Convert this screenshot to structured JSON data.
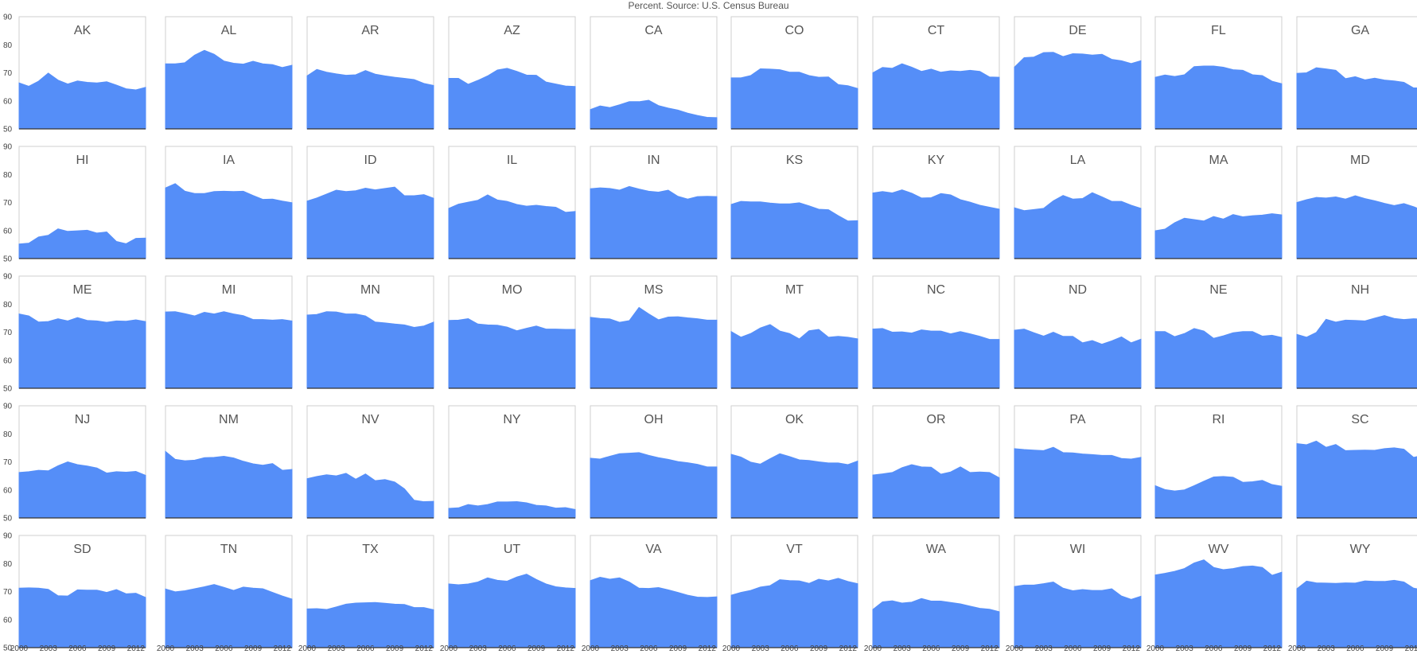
{
  "chart_title": "Percent. Source: U.S. Census Bureau",
  "colors": {
    "area": "#558ef8",
    "frame": "#cfcfcf",
    "baseline": "#333333",
    "label": "#555555",
    "tick": "#444444"
  },
  "chart_data": {
    "type": "area",
    "title": "Percent. Source: U.S. Census Bureau",
    "x": [
      2000,
      2001,
      2002,
      2003,
      2004,
      2005,
      2006,
      2007,
      2008,
      2009,
      2010,
      2011,
      2012,
      2013
    ],
    "xticks": [
      2000,
      2003,
      2006,
      2009,
      2012
    ],
    "ylim": [
      50,
      90
    ],
    "yticks": [
      50,
      60,
      70,
      80,
      90
    ],
    "grid": false,
    "panels": [
      {
        "name": "AK",
        "values": [
          66.4,
          65.2,
          67.0,
          69.9,
          67.4,
          66.0,
          67.1,
          66.6,
          66.4,
          66.8,
          65.6,
          64.3,
          63.9,
          64.8
        ]
      },
      {
        "name": "AL",
        "values": [
          73.2,
          73.2,
          73.6,
          76.3,
          78.0,
          76.6,
          74.2,
          73.4,
          73.1,
          74.1,
          73.2,
          72.9,
          71.9,
          72.7
        ]
      },
      {
        "name": "AR",
        "values": [
          68.9,
          71.2,
          70.2,
          69.6,
          69.1,
          69.3,
          70.8,
          69.5,
          68.9,
          68.4,
          68.0,
          67.6,
          66.2,
          65.5
        ]
      },
      {
        "name": "AZ",
        "values": [
          68.0,
          68.0,
          65.9,
          67.3,
          68.9,
          71.0,
          71.6,
          70.5,
          69.2,
          69.1,
          66.7,
          66.0,
          65.3,
          65.1
        ]
      },
      {
        "name": "CA",
        "values": [
          56.9,
          58.2,
          57.6,
          58.6,
          59.7,
          59.7,
          60.2,
          58.3,
          57.4,
          56.7,
          55.6,
          54.8,
          54.1,
          54.0
        ]
      },
      {
        "name": "CO",
        "values": [
          68.2,
          68.2,
          69.0,
          71.4,
          71.3,
          71.1,
          70.2,
          70.2,
          69.0,
          68.4,
          68.5,
          65.8,
          65.4,
          64.4
        ]
      },
      {
        "name": "CT",
        "values": [
          70.0,
          71.9,
          71.6,
          73.2,
          72.0,
          70.5,
          71.3,
          70.2,
          70.7,
          70.5,
          70.9,
          70.5,
          68.5,
          68.4
        ]
      },
      {
        "name": "DE",
        "values": [
          72.0,
          75.4,
          75.6,
          77.2,
          77.3,
          75.8,
          76.8,
          76.7,
          76.3,
          76.6,
          74.8,
          74.3,
          73.3,
          74.3
        ]
      },
      {
        "name": "FL",
        "values": [
          68.4,
          69.2,
          68.7,
          69.3,
          72.2,
          72.4,
          72.4,
          72.0,
          71.1,
          70.9,
          69.3,
          69.0,
          67.0,
          66.1
        ]
      },
      {
        "name": "GA",
        "values": [
          69.8,
          70.0,
          71.8,
          71.4,
          70.9,
          67.9,
          68.6,
          67.5,
          68.1,
          67.4,
          67.1,
          66.6,
          64.6,
          64.6
        ]
      },
      {
        "name": "HI",
        "values": [
          55.2,
          55.5,
          57.7,
          58.3,
          60.6,
          59.7,
          59.9,
          60.1,
          59.1,
          59.5,
          56.1,
          55.3,
          57.2,
          57.3
        ]
      },
      {
        "name": "IA",
        "values": [
          75.2,
          76.7,
          74.0,
          73.2,
          73.2,
          73.9,
          74.0,
          73.9,
          74.0,
          72.5,
          71.1,
          71.2,
          70.5,
          69.9
        ]
      },
      {
        "name": "ID",
        "values": [
          70.5,
          71.6,
          73.0,
          74.4,
          73.9,
          74.2,
          75.1,
          74.5,
          75.0,
          75.5,
          72.4,
          72.4,
          72.8,
          71.5
        ]
      },
      {
        "name": "IL",
        "values": [
          67.9,
          69.4,
          70.1,
          70.8,
          72.7,
          70.9,
          70.4,
          69.3,
          68.7,
          69.0,
          68.6,
          68.3,
          66.5,
          66.8
        ]
      },
      {
        "name": "IN",
        "values": [
          74.9,
          75.2,
          75.0,
          74.4,
          75.7,
          74.8,
          74.0,
          73.7,
          74.4,
          72.2,
          71.2,
          72.1,
          72.2,
          72.1
        ]
      },
      {
        "name": "KS",
        "values": [
          69.3,
          70.4,
          70.2,
          70.2,
          69.8,
          69.5,
          69.5,
          69.9,
          68.8,
          67.6,
          67.4,
          65.3,
          63.4,
          63.5
        ]
      },
      {
        "name": "KY",
        "values": [
          73.4,
          73.9,
          73.4,
          74.5,
          73.3,
          71.6,
          71.7,
          73.2,
          72.7,
          71.0,
          70.1,
          69.0,
          68.3,
          67.6
        ]
      },
      {
        "name": "LA",
        "values": [
          68.1,
          67.1,
          67.5,
          67.9,
          70.6,
          72.5,
          71.2,
          71.4,
          73.5,
          72.0,
          70.4,
          70.4,
          69.0,
          67.9
        ]
      },
      {
        "name": "MA",
        "values": [
          59.9,
          60.5,
          62.8,
          64.4,
          63.9,
          63.4,
          65.0,
          64.1,
          65.7,
          64.9,
          65.3,
          65.5,
          66.0,
          65.6
        ]
      },
      {
        "name": "MD",
        "values": [
          70.0,
          71.0,
          71.8,
          71.6,
          72.0,
          71.2,
          72.4,
          71.4,
          70.6,
          69.7,
          68.9,
          69.6,
          68.5,
          67.1
        ]
      },
      {
        "name": "ME",
        "values": [
          76.5,
          75.8,
          73.6,
          73.8,
          74.8,
          74.0,
          75.2,
          74.2,
          74.0,
          73.5,
          74.0,
          73.9,
          74.4,
          73.8
        ]
      },
      {
        "name": "MI",
        "values": [
          77.2,
          77.3,
          76.6,
          75.8,
          77.1,
          76.5,
          77.3,
          76.5,
          75.9,
          74.5,
          74.5,
          74.3,
          74.5,
          74.0
        ]
      },
      {
        "name": "MN",
        "values": [
          76.1,
          76.3,
          77.3,
          77.2,
          76.5,
          76.5,
          75.8,
          73.6,
          73.3,
          72.9,
          72.6,
          71.7,
          72.2,
          73.6
        ]
      },
      {
        "name": "MO",
        "values": [
          74.2,
          74.3,
          74.8,
          72.9,
          72.6,
          72.5,
          71.8,
          70.5,
          71.4,
          72.2,
          71.1,
          71.1,
          71.0,
          71.0
        ]
      },
      {
        "name": "MS",
        "values": [
          75.3,
          74.9,
          74.7,
          73.5,
          74.1,
          78.8,
          76.5,
          74.4,
          75.4,
          75.5,
          75.1,
          74.8,
          74.3,
          74.3
        ]
      },
      {
        "name": "MT",
        "values": [
          70.2,
          68.2,
          69.5,
          71.5,
          72.7,
          70.4,
          69.5,
          67.6,
          70.5,
          71.0,
          68.2,
          68.5,
          68.2,
          67.6
        ]
      },
      {
        "name": "NC",
        "values": [
          71.1,
          71.3,
          70.0,
          70.1,
          69.7,
          70.8,
          70.4,
          70.4,
          69.4,
          70.2,
          69.4,
          68.5,
          67.4,
          67.4
        ]
      },
      {
        "name": "ND",
        "values": [
          70.7,
          71.1,
          69.8,
          68.6,
          70.0,
          68.5,
          68.5,
          66.2,
          67.0,
          65.7,
          66.9,
          68.3,
          66.2,
          67.5
        ]
      },
      {
        "name": "NE",
        "values": [
          70.2,
          70.2,
          68.4,
          69.5,
          71.3,
          70.4,
          67.8,
          68.7,
          69.8,
          70.2,
          70.2,
          68.6,
          68.9,
          68.1
        ]
      },
      {
        "name": "NH",
        "values": [
          69.2,
          68.2,
          69.9,
          74.6,
          73.6,
          74.3,
          74.2,
          74.0,
          75.0,
          75.9,
          74.9,
          74.5,
          74.8,
          74.6
        ]
      },
      {
        "name": "NJ",
        "values": [
          66.2,
          66.5,
          67.0,
          66.8,
          68.6,
          70.0,
          69.0,
          68.5,
          67.8,
          66.0,
          66.5,
          66.3,
          66.6,
          65.2
        ]
      },
      {
        "name": "NM",
        "values": [
          73.7,
          70.9,
          70.4,
          70.6,
          71.5,
          71.6,
          72.0,
          71.4,
          70.2,
          69.3,
          68.8,
          69.4,
          67.0,
          67.3
        ]
      },
      {
        "name": "NV",
        "values": [
          64.0,
          64.8,
          65.4,
          65.0,
          65.9,
          63.8,
          65.7,
          63.3,
          63.7,
          62.8,
          60.4,
          56.3,
          55.8,
          55.9
        ]
      },
      {
        "name": "NY",
        "values": [
          53.4,
          53.6,
          54.8,
          54.3,
          54.8,
          55.7,
          55.7,
          55.8,
          55.4,
          54.5,
          54.3,
          53.5,
          53.7,
          53.0
        ]
      },
      {
        "name": "OH",
        "values": [
          71.3,
          71.0,
          72.0,
          72.9,
          73.1,
          73.3,
          72.3,
          71.5,
          70.9,
          70.1,
          69.7,
          69.1,
          68.2,
          68.2
        ]
      },
      {
        "name": "OK",
        "values": [
          72.7,
          71.7,
          69.9,
          69.2,
          71.1,
          72.9,
          71.9,
          70.7,
          70.5,
          70.0,
          69.6,
          69.6,
          69.0,
          70.3
        ]
      },
      {
        "name": "OR",
        "values": [
          65.3,
          65.7,
          66.2,
          67.9,
          69.0,
          68.2,
          68.1,
          65.6,
          66.4,
          68.2,
          66.2,
          66.4,
          66.2,
          64.3
        ]
      },
      {
        "name": "PA",
        "values": [
          74.7,
          74.4,
          74.2,
          74.0,
          75.2,
          73.3,
          73.2,
          72.8,
          72.6,
          72.3,
          72.3,
          71.2,
          71.0,
          71.6
        ]
      },
      {
        "name": "RI",
        "values": [
          61.5,
          60.1,
          59.6,
          60.0,
          61.5,
          63.1,
          64.6,
          64.8,
          64.5,
          62.7,
          62.9,
          63.4,
          61.9,
          61.3
        ]
      },
      {
        "name": "SC",
        "values": [
          76.5,
          76.1,
          77.4,
          75.2,
          76.2,
          74.0,
          74.1,
          74.2,
          74.1,
          74.7,
          75.0,
          74.5,
          71.6,
          72.4
        ]
      },
      {
        "name": "SD",
        "values": [
          71.2,
          71.3,
          71.2,
          70.8,
          68.5,
          68.4,
          70.6,
          70.5,
          70.5,
          69.7,
          70.7,
          69.2,
          69.4,
          67.9
        ]
      },
      {
        "name": "TN",
        "values": [
          70.9,
          69.9,
          70.3,
          71.0,
          71.7,
          72.5,
          71.5,
          70.4,
          71.6,
          71.2,
          71.0,
          69.7,
          68.4,
          67.3
        ]
      },
      {
        "name": "TX",
        "values": [
          63.8,
          63.9,
          63.6,
          64.5,
          65.5,
          65.9,
          66.0,
          66.1,
          65.8,
          65.5,
          65.4,
          64.3,
          64.3,
          63.5
        ]
      },
      {
        "name": "UT",
        "values": [
          72.7,
          72.4,
          72.7,
          73.4,
          74.9,
          74.0,
          73.7,
          75.2,
          76.2,
          74.3,
          72.7,
          71.7,
          71.3,
          71.1
        ]
      },
      {
        "name": "VA",
        "values": [
          73.9,
          75.1,
          74.4,
          74.9,
          73.4,
          71.2,
          71.1,
          71.4,
          70.6,
          69.7,
          68.7,
          68.0,
          67.9,
          68.1
        ]
      },
      {
        "name": "VT",
        "values": [
          68.7,
          69.7,
          70.4,
          71.6,
          72.1,
          74.2,
          73.9,
          73.8,
          72.9,
          74.4,
          73.8,
          74.7,
          73.6,
          72.8
        ]
      },
      {
        "name": "WA",
        "values": [
          63.6,
          66.3,
          66.7,
          65.9,
          66.2,
          67.5,
          66.6,
          66.6,
          66.1,
          65.6,
          64.8,
          64.0,
          63.7,
          62.8
        ]
      },
      {
        "name": "WI",
        "values": [
          71.8,
          72.3,
          72.3,
          72.8,
          73.4,
          71.2,
          70.3,
          70.7,
          70.4,
          70.4,
          71.0,
          68.4,
          67.2,
          68.3
        ]
      },
      {
        "name": "WV",
        "values": [
          75.9,
          76.5,
          77.2,
          78.2,
          80.2,
          81.3,
          78.6,
          77.8,
          78.2,
          78.9,
          79.1,
          78.6,
          75.8,
          76.9
        ]
      },
      {
        "name": "WY",
        "values": [
          71.0,
          73.7,
          73.1,
          73.0,
          72.9,
          73.1,
          73.0,
          73.8,
          73.6,
          73.6,
          74.0,
          73.4,
          71.2,
          70.6
        ]
      }
    ]
  }
}
